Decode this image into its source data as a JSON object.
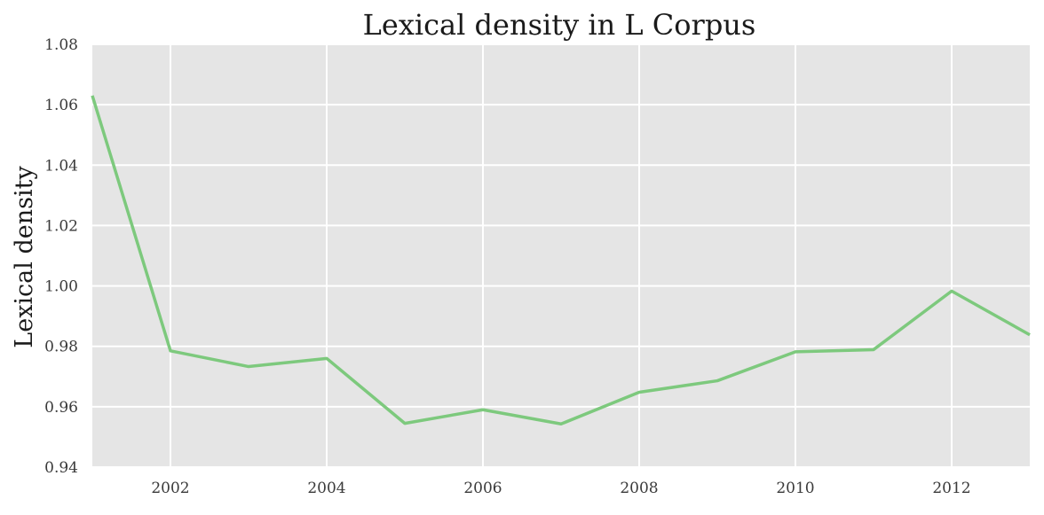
{
  "chart_data": {
    "type": "line",
    "title": "Lexical density in L Corpus",
    "xlabel": "",
    "ylabel": "Lexical density",
    "xlim": [
      2001.0,
      2013.0
    ],
    "ylim": [
      0.94,
      1.08
    ],
    "xticks": [
      "2002",
      "2004",
      "2006",
      "2008",
      "2010",
      "2012"
    ],
    "yticks": [
      "0.94",
      "0.96",
      "0.98",
      "1.00",
      "1.02",
      "1.04",
      "1.06",
      "1.08"
    ],
    "grid": true,
    "legend": "none",
    "colors": {
      "line": "#7dc97d",
      "plot_bg": "#e5e5e5",
      "grid": "#ffffff"
    },
    "series": [
      {
        "x": [
          2001,
          2002,
          2003,
          2004,
          2005,
          2006,
          2007,
          2008,
          2009,
          2010,
          2011,
          2012,
          2013
        ],
        "values": [
          1.063,
          0.9785,
          0.9733,
          0.976,
          0.9545,
          0.959,
          0.9543,
          0.9648,
          0.9686,
          0.9782,
          0.9789,
          0.9983,
          0.9838
        ]
      }
    ]
  }
}
